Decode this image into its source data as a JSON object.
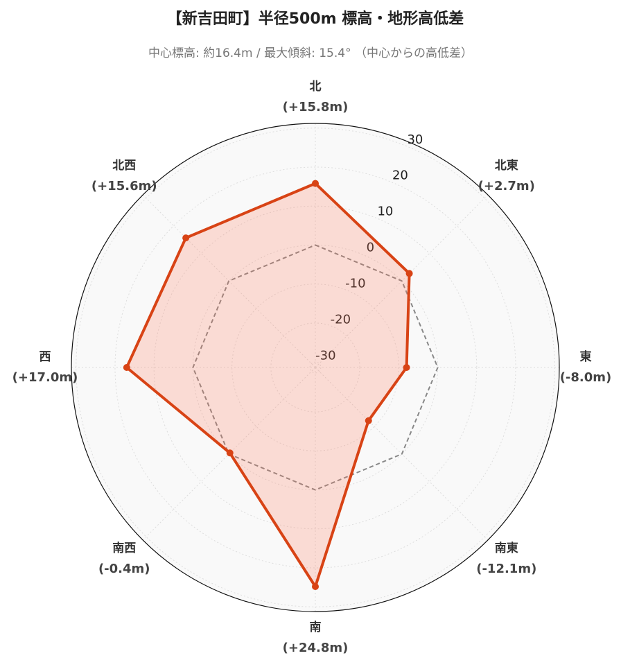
{
  "chart_data": {
    "type": "radar",
    "title": "【新吉田町】半径500m 標高・地形高低差",
    "subtitle": "中心標高: 約16.4m / 最大傾斜: 15.4° （中心からの高低差）",
    "categories": [
      "北",
      "北東",
      "東",
      "南東",
      "南",
      "南西",
      "西",
      "北西"
    ],
    "series": [
      {
        "color": "#d84315",
        "fill": "rgba(255,112,80,0.22)",
        "values": [
          15.8,
          2.7,
          -8.0,
          -12.1,
          24.8,
          -0.4,
          17.0,
          15.6
        ],
        "value_labels": [
          "(+15.8m)",
          "(+2.7m)",
          "(-8.0m)",
          "(-12.1m)",
          "(+24.8m)",
          "(-0.4m)",
          "(+17.0m)",
          "(+15.6m)"
        ]
      },
      {
        "color": "#888888",
        "dash": true,
        "values": [
          0,
          0,
          0,
          0,
          0,
          0,
          0,
          0
        ]
      }
    ],
    "ylim": [
      -31.4,
      31.2
    ],
    "yticks": [
      -30,
      -20,
      -10,
      0,
      10,
      20,
      30
    ],
    "grid": true
  }
}
